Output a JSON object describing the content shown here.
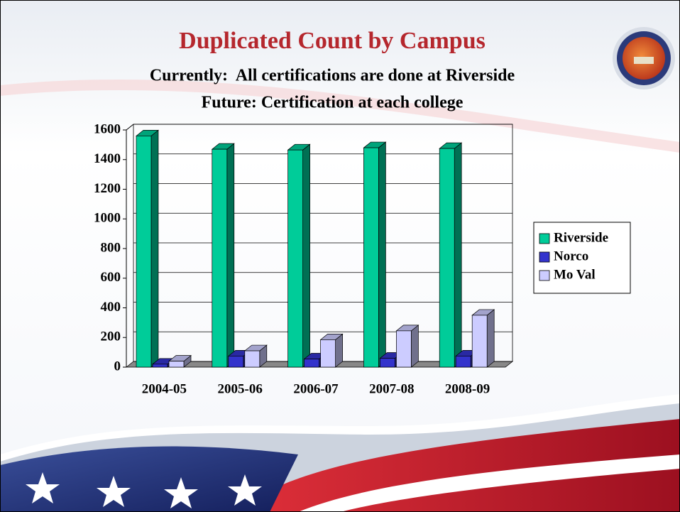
{
  "chart_data": {
    "type": "bar",
    "title": "Duplicated Count by Campus",
    "subtitle": [
      "Currently:  All certifications are done at Riverside",
      "Future: Certification at each college"
    ],
    "categories": [
      "2004-05",
      "2005-06",
      "2006-07",
      "2007-08",
      "2008-09"
    ],
    "series": [
      {
        "name": "Riverside",
        "color": "#00cc99",
        "values": [
          1560,
          1470,
          1465,
          1480,
          1475
        ]
      },
      {
        "name": "Norco",
        "color": "#3333cc",
        "values": [
          20,
          75,
          55,
          60,
          75
        ]
      },
      {
        "name": "Mo Val",
        "color": "#ccccff",
        "values": [
          40,
          110,
          185,
          245,
          350
        ]
      }
    ],
    "ylim": [
      0,
      1600
    ],
    "yticks": [
      0,
      200,
      400,
      600,
      800,
      1000,
      1200,
      1400,
      1600
    ],
    "grid": true,
    "legend": "right"
  }
}
